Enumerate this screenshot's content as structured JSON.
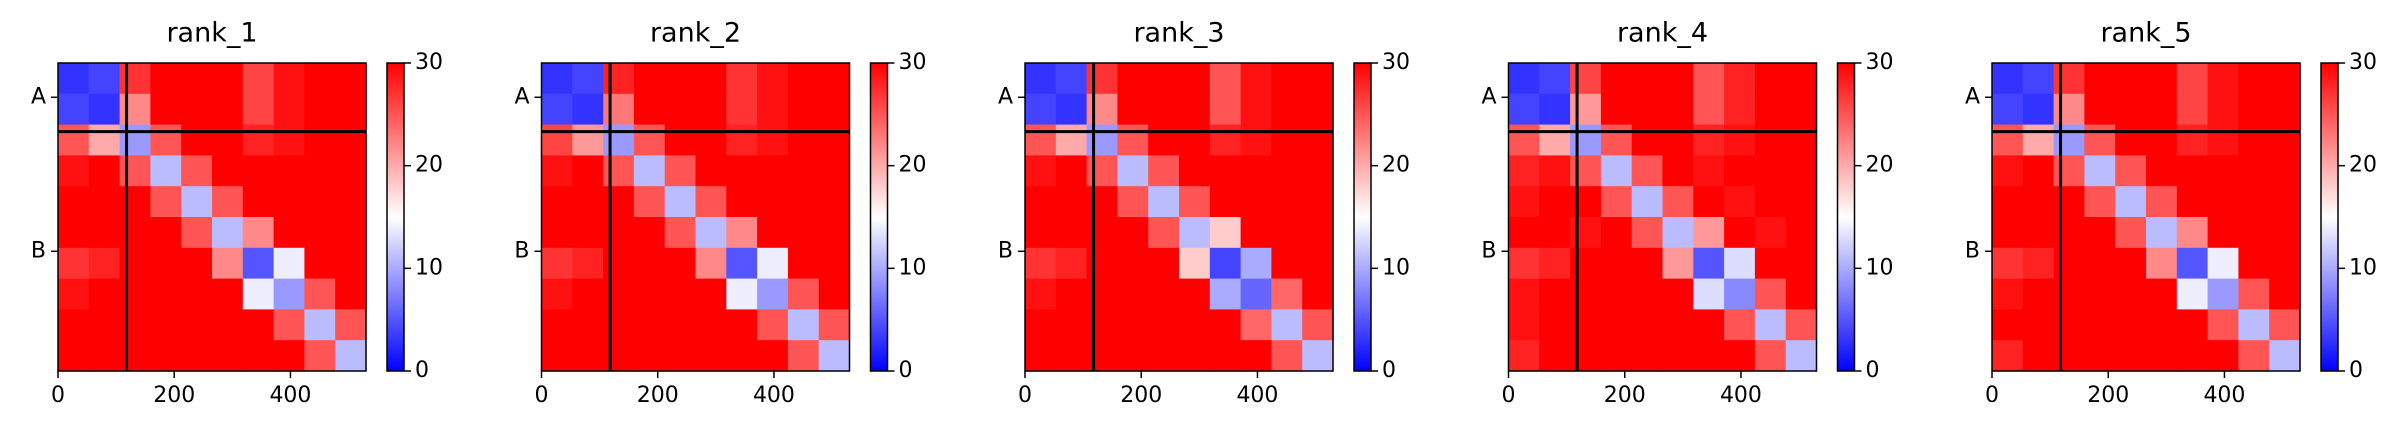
{
  "chart_data": [
    {
      "type": "heatmap",
      "title": "rank_1",
      "xlim": [
        0,
        530
      ],
      "ylim": [
        530,
        0
      ],
      "xticks": [
        0,
        200,
        400
      ],
      "yticks": [
        {
          "value": 59,
          "label": "A"
        },
        {
          "value": 324,
          "label": "B"
        }
      ],
      "chain_breaks": [
        118
      ],
      "clim": [
        0,
        30
      ],
      "cticks": [
        0,
        10,
        20,
        30
      ],
      "colormap": [
        "#0000ff",
        "#ffffff",
        "#ff0000"
      ],
      "matrix": [
        [
          3,
          4,
          27,
          30,
          30,
          30,
          26,
          29,
          30,
          30
        ],
        [
          4,
          3,
          22,
          30,
          30,
          30,
          26,
          29,
          30,
          30
        ],
        [
          25,
          20,
          9,
          25,
          30,
          30,
          28,
          29,
          30,
          30
        ],
        [
          29,
          30,
          25,
          11,
          25,
          30,
          30,
          30,
          30,
          30
        ],
        [
          30,
          30,
          30,
          25,
          11,
          25,
          30,
          30,
          30,
          30
        ],
        [
          30,
          30,
          30,
          30,
          25,
          11,
          22,
          30,
          30,
          30
        ],
        [
          27,
          28,
          30,
          30,
          30,
          22,
          5,
          14,
          30,
          30
        ],
        [
          29,
          30,
          30,
          30,
          30,
          30,
          14,
          9,
          25,
          30
        ],
        [
          30,
          30,
          30,
          30,
          30,
          30,
          30,
          25,
          11,
          25
        ],
        [
          30,
          30,
          30,
          30,
          30,
          30,
          30,
          30,
          25,
          11
        ]
      ]
    },
    {
      "type": "heatmap",
      "title": "rank_2",
      "xlim": [
        0,
        530
      ],
      "ylim": [
        530,
        0
      ],
      "xticks": [
        0,
        200,
        400
      ],
      "yticks": [
        {
          "value": 59,
          "label": "A"
        },
        {
          "value": 324,
          "label": "B"
        }
      ],
      "chain_breaks": [
        118
      ],
      "clim": [
        0,
        30
      ],
      "cticks": [
        0,
        10,
        20,
        30
      ],
      "colormap": [
        "#0000ff",
        "#ffffff",
        "#ff0000"
      ],
      "matrix": [
        [
          3,
          4,
          28,
          30,
          30,
          30,
          27,
          29,
          30,
          30
        ],
        [
          4,
          3,
          23,
          30,
          30,
          30,
          27,
          29,
          30,
          30
        ],
        [
          26,
          21,
          9,
          25,
          30,
          30,
          28,
          29,
          30,
          30
        ],
        [
          29,
          30,
          25,
          11,
          25,
          30,
          30,
          30,
          30,
          30
        ],
        [
          30,
          30,
          30,
          25,
          11,
          25,
          30,
          30,
          30,
          30
        ],
        [
          30,
          30,
          30,
          30,
          25,
          11,
          22,
          30,
          30,
          30
        ],
        [
          27,
          28,
          30,
          30,
          30,
          22,
          5,
          14,
          30,
          30
        ],
        [
          29,
          30,
          30,
          30,
          30,
          30,
          14,
          9,
          25,
          30
        ],
        [
          30,
          30,
          30,
          30,
          30,
          30,
          30,
          25,
          11,
          25
        ],
        [
          30,
          30,
          30,
          30,
          30,
          30,
          30,
          30,
          25,
          11
        ]
      ]
    },
    {
      "type": "heatmap",
      "title": "rank_3",
      "xlim": [
        0,
        530
      ],
      "ylim": [
        530,
        0
      ],
      "xticks": [
        0,
        200,
        400
      ],
      "yticks": [
        {
          "value": 59,
          "label": "A"
        },
        {
          "value": 324,
          "label": "B"
        }
      ],
      "chain_breaks": [
        118
      ],
      "clim": [
        0,
        30
      ],
      "cticks": [
        0,
        10,
        20,
        30
      ],
      "colormap": [
        "#0000ff",
        "#ffffff",
        "#ff0000"
      ],
      "matrix": [
        [
          3,
          4,
          27,
          30,
          30,
          30,
          25,
          29,
          30,
          30
        ],
        [
          4,
          3,
          22,
          30,
          30,
          30,
          25,
          29,
          30,
          30
        ],
        [
          25,
          20,
          9,
          25,
          30,
          30,
          28,
          29,
          30,
          30
        ],
        [
          29,
          30,
          25,
          11,
          25,
          30,
          30,
          30,
          30,
          30
        ],
        [
          30,
          30,
          30,
          25,
          11,
          25,
          30,
          30,
          30,
          30
        ],
        [
          30,
          30,
          30,
          30,
          25,
          11,
          18,
          30,
          30,
          30
        ],
        [
          27,
          28,
          30,
          30,
          30,
          18,
          4,
          10,
          30,
          30
        ],
        [
          29,
          30,
          30,
          30,
          30,
          30,
          10,
          6,
          24,
          30
        ],
        [
          30,
          30,
          30,
          30,
          30,
          30,
          30,
          24,
          11,
          25
        ],
        [
          30,
          30,
          30,
          30,
          30,
          30,
          30,
          30,
          25,
          11
        ]
      ]
    },
    {
      "type": "heatmap",
      "title": "rank_4",
      "xlim": [
        0,
        530
      ],
      "ylim": [
        530,
        0
      ],
      "xticks": [
        0,
        200,
        400
      ],
      "yticks": [
        {
          "value": 59,
          "label": "A"
        },
        {
          "value": 324,
          "label": "B"
        }
      ],
      "chain_breaks": [
        118
      ],
      "clim": [
        0,
        30
      ],
      "cticks": [
        0,
        10,
        20,
        30
      ],
      "colormap": [
        "#0000ff",
        "#ffffff",
        "#ff0000"
      ],
      "matrix": [
        [
          3,
          4,
          26,
          30,
          30,
          30,
          25,
          28,
          30,
          30
        ],
        [
          4,
          3,
          21,
          30,
          30,
          30,
          25,
          28,
          30,
          30
        ],
        [
          25,
          20,
          9,
          25,
          30,
          30,
          28,
          29,
          30,
          30
        ],
        [
          28,
          29,
          25,
          11,
          25,
          30,
          29,
          30,
          30,
          30
        ],
        [
          29,
          30,
          30,
          25,
          11,
          25,
          30,
          29,
          30,
          30
        ],
        [
          30,
          30,
          29,
          30,
          25,
          11,
          21,
          30,
          29,
          30
        ],
        [
          27,
          28,
          30,
          30,
          30,
          21,
          5,
          13,
          30,
          30
        ],
        [
          29,
          30,
          30,
          30,
          30,
          30,
          13,
          8,
          25,
          30
        ],
        [
          29,
          30,
          30,
          30,
          30,
          30,
          30,
          25,
          11,
          25
        ],
        [
          28,
          30,
          30,
          30,
          30,
          30,
          30,
          30,
          25,
          11
        ]
      ]
    },
    {
      "type": "heatmap",
      "title": "rank_5",
      "xlim": [
        0,
        530
      ],
      "ylim": [
        530,
        0
      ],
      "xticks": [
        0,
        200,
        400
      ],
      "yticks": [
        {
          "value": 59,
          "label": "A"
        },
        {
          "value": 324,
          "label": "B"
        }
      ],
      "chain_breaks": [
        118
      ],
      "clim": [
        0,
        30
      ],
      "cticks": [
        0,
        10,
        20,
        30
      ],
      "colormap": [
        "#0000ff",
        "#ffffff",
        "#ff0000"
      ],
      "matrix": [
        [
          3,
          4,
          27,
          30,
          30,
          30,
          26,
          29,
          30,
          30
        ],
        [
          4,
          3,
          22,
          30,
          30,
          30,
          26,
          29,
          30,
          30
        ],
        [
          25,
          20,
          9,
          25,
          30,
          30,
          28,
          29,
          30,
          30
        ],
        [
          29,
          30,
          25,
          11,
          25,
          30,
          30,
          30,
          30,
          30
        ],
        [
          30,
          30,
          30,
          25,
          11,
          25,
          30,
          30,
          30,
          30
        ],
        [
          30,
          30,
          30,
          30,
          25,
          11,
          22,
          30,
          30,
          30
        ],
        [
          27,
          28,
          30,
          30,
          30,
          22,
          5,
          14,
          30,
          30
        ],
        [
          29,
          30,
          30,
          30,
          30,
          30,
          14,
          9,
          25,
          30
        ],
        [
          30,
          30,
          30,
          30,
          30,
          30,
          30,
          25,
          11,
          25
        ],
        [
          28,
          30,
          30,
          30,
          30,
          30,
          30,
          30,
          25,
          11
        ]
      ]
    }
  ]
}
